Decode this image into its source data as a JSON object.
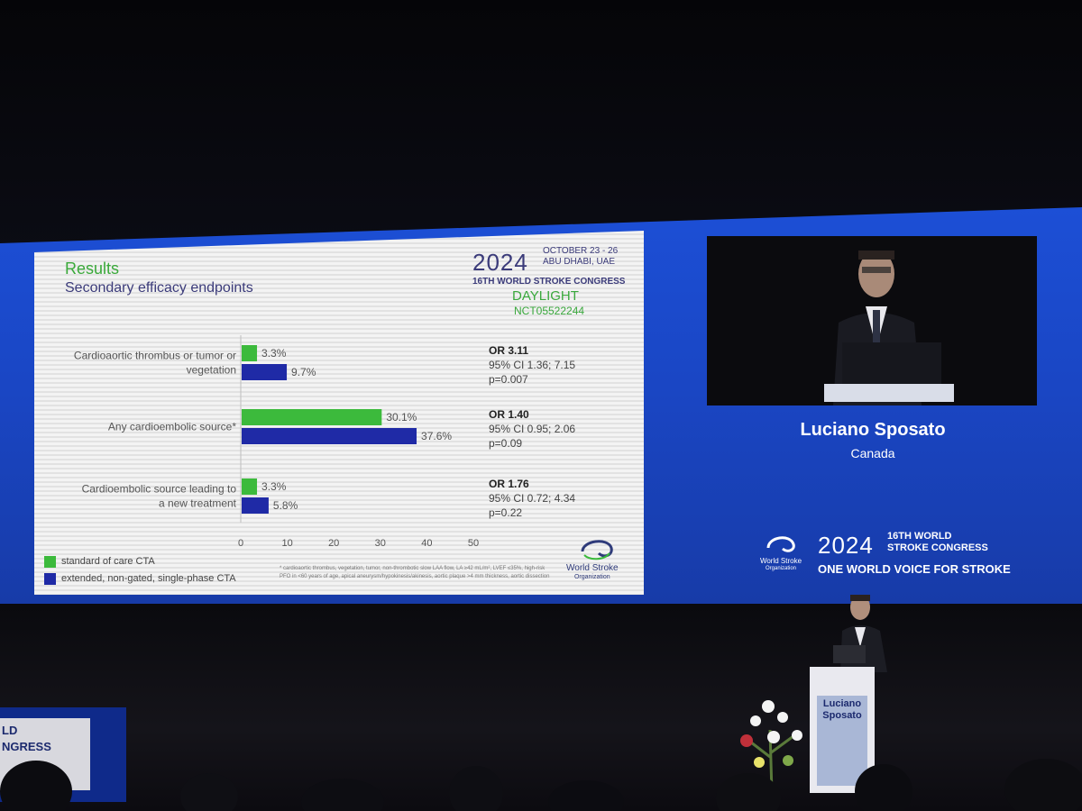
{
  "slide": {
    "heading": "Results",
    "subheading": "Secondary efficacy endpoints",
    "footnote": "* cardioaortic thrombus, vegetation, tumor, non-thrombotic slow LAA flow, LA ≥42 mL/m², LVEF ≤35%, high-risk PFO in <60 years of age, apical aneurysm/hypokinesis/akinesis, aortic plaque >4 mm thickness, aortic dissection",
    "congress": {
      "year": "2024",
      "dates": "OCTOBER 23 - 26",
      "location": "ABU DHABI, UAE",
      "name": "16TH WORLD STROKE CONGRESS",
      "trial": "DAYLIGHT",
      "trial_id": "NCT05522244"
    },
    "org_line1": "World Stroke",
    "org_line2": "Organization"
  },
  "chart_data": {
    "type": "bar",
    "orientation": "horizontal",
    "categories": [
      "Cardioaortic thrombus or tumor or vegetation",
      "Any cardioembolic source*",
      "Cardioembolic source leading to a new treatment"
    ],
    "series": [
      {
        "name": "standard of care CTA",
        "color": "#3cba3c",
        "values": [
          3.3,
          30.1,
          3.3
        ],
        "labels": [
          "3.3%",
          "30.1%",
          "3.3%"
        ]
      },
      {
        "name": "extended, non-gated, single-phase CTA",
        "color": "#1f2aa6",
        "values": [
          9.7,
          37.6,
          5.8
        ],
        "labels": [
          "9.7%",
          "37.6%",
          "5.8%"
        ]
      }
    ],
    "xlim": [
      0,
      50
    ],
    "xticks": [
      "0",
      "10",
      "20",
      "30",
      "40",
      "50"
    ],
    "grid": false,
    "legend": "bottom-left",
    "annotations": [
      {
        "or": "OR 3.11",
        "ci": "95% CI 1.36; 7.15",
        "p": "p=0.007"
      },
      {
        "or": "OR 1.40",
        "ci": "95% CI 0.95; 2.06",
        "p": "p=0.09"
      },
      {
        "or": "OR 1.76",
        "ci": "95% CI 0.72; 4.34",
        "p": "p=0.22"
      }
    ]
  },
  "speaker": {
    "name": "Luciano Sposato",
    "country": "Canada"
  },
  "banner": {
    "year": "2024",
    "name_line1": "16TH WORLD",
    "name_line2": "STROKE CONGRESS",
    "tagline": "ONE WORLD VOICE FOR STROKE",
    "org_line1": "World Stroke",
    "org_line2": "Organization"
  },
  "podium": {
    "line1": "Luciano",
    "line2": "Sposato"
  },
  "side_sign": {
    "line1": "LD",
    "line2": "NGRESS"
  },
  "colors": {
    "screen_blue": "#1c4fd6",
    "green": "#3cba3c",
    "navy": "#1f2aa6"
  }
}
